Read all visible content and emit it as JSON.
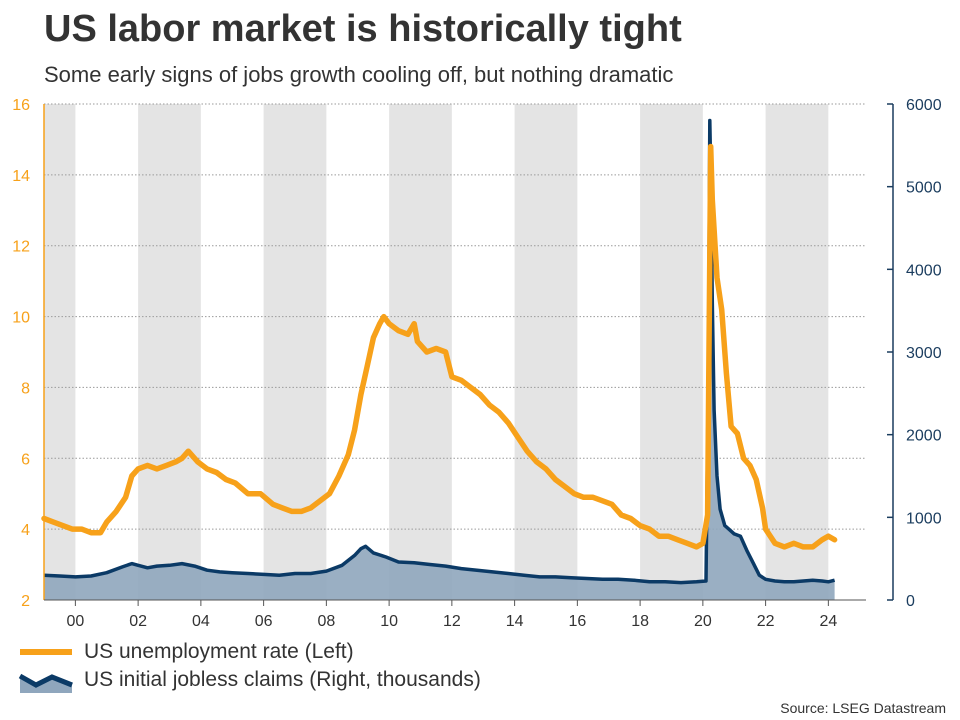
{
  "title": "US labor market is historically tight",
  "subtitle": "Some early signs of jobs growth cooling off, but nothing dramatic",
  "source": "Source: LSEG Datastream",
  "colors": {
    "unemployment": "#f7a11a",
    "claims_line": "#0b3a66",
    "claims_fill": "#8fa6bd",
    "band": "#e4e4e4",
    "left_axis": "#f7a11a",
    "right_axis": "#1a3c5e"
  },
  "legend": [
    {
      "label": "US unemployment rate (Left)",
      "icon": "orange-line-icon"
    },
    {
      "label": "US initial jobless claims (Right, thousands)",
      "icon": "blue-area-icon"
    }
  ],
  "chart_data": {
    "type": "line",
    "x_range": [
      1999.0,
      2025.2
    ],
    "x_ticks": [
      {
        "value": 2000,
        "label": "00"
      },
      {
        "value": 2002,
        "label": "02"
      },
      {
        "value": 2004,
        "label": "04"
      },
      {
        "value": 2006,
        "label": "06"
      },
      {
        "value": 2008,
        "label": "08"
      },
      {
        "value": 2010,
        "label": "10"
      },
      {
        "value": 2012,
        "label": "12"
      },
      {
        "value": 2014,
        "label": "14"
      },
      {
        "value": 2016,
        "label": "16"
      },
      {
        "value": 2018,
        "label": "18"
      },
      {
        "value": 2020,
        "label": "20"
      },
      {
        "value": 2022,
        "label": "22"
      },
      {
        "value": 2024,
        "label": "24"
      }
    ],
    "shaded_years": [
      [
        1999.0,
        2000.0
      ],
      [
        2002.0,
        2004.0
      ],
      [
        2006.0,
        2008.0
      ],
      [
        2010.0,
        2012.0
      ],
      [
        2014.0,
        2016.0
      ],
      [
        2018.0,
        2020.0
      ],
      [
        2022.0,
        2024.0
      ]
    ],
    "left_axis": {
      "min": 2,
      "max": 16,
      "ticks": [
        "2",
        "4",
        "6",
        "8",
        "10",
        "12",
        "14",
        "16"
      ]
    },
    "right_axis": {
      "min": 0,
      "max": 6000,
      "ticks": [
        "0",
        "1000",
        "2000",
        "3000",
        "4000",
        "5000",
        "6000"
      ]
    },
    "grid": true,
    "series": [
      {
        "name": "US unemployment rate (Left)",
        "axis": "left",
        "type": "line",
        "x": [
          1999.0,
          1999.3,
          1999.6,
          1999.9,
          2000.2,
          2000.5,
          2000.8,
          2001.0,
          2001.3,
          2001.6,
          2001.8,
          2002.0,
          2002.3,
          2002.6,
          2002.9,
          2003.2,
          2003.4,
          2003.6,
          2003.9,
          2004.2,
          2004.5,
          2004.8,
          2005.1,
          2005.5,
          2005.9,
          2006.3,
          2006.6,
          2006.9,
          2007.2,
          2007.5,
          2007.8,
          2008.1,
          2008.4,
          2008.7,
          2008.9,
          2009.1,
          2009.3,
          2009.5,
          2009.7,
          2009.83,
          2010.0,
          2010.3,
          2010.6,
          2010.8,
          2010.9,
          2011.2,
          2011.5,
          2011.8,
          2012.0,
          2012.3,
          2012.6,
          2012.9,
          2013.2,
          2013.5,
          2013.8,
          2014.1,
          2014.4,
          2014.7,
          2015.0,
          2015.3,
          2015.6,
          2015.9,
          2016.2,
          2016.5,
          2016.8,
          2017.1,
          2017.4,
          2017.7,
          2018.0,
          2018.3,
          2018.6,
          2018.9,
          2019.2,
          2019.5,
          2019.8,
          2020.0,
          2020.15,
          2020.25,
          2020.3,
          2020.45,
          2020.6,
          2020.75,
          2020.9,
          2021.1,
          2021.3,
          2021.5,
          2021.7,
          2021.9,
          2022.0,
          2022.3,
          2022.6,
          2022.9,
          2023.2,
          2023.5,
          2023.8,
          2024.0,
          2024.2
        ],
        "y": [
          4.3,
          4.2,
          4.1,
          4.0,
          4.0,
          3.9,
          3.9,
          4.2,
          4.5,
          4.9,
          5.5,
          5.7,
          5.8,
          5.7,
          5.8,
          5.9,
          6.0,
          6.2,
          5.9,
          5.7,
          5.6,
          5.4,
          5.3,
          5.0,
          5.0,
          4.7,
          4.6,
          4.5,
          4.5,
          4.6,
          4.8,
          5.0,
          5.5,
          6.1,
          6.8,
          7.8,
          8.6,
          9.4,
          9.8,
          10.0,
          9.8,
          9.6,
          9.5,
          9.8,
          9.3,
          9.0,
          9.1,
          9.0,
          8.3,
          8.2,
          8.0,
          7.8,
          7.5,
          7.3,
          7.0,
          6.6,
          6.2,
          5.9,
          5.7,
          5.4,
          5.2,
          5.0,
          4.9,
          4.9,
          4.8,
          4.7,
          4.4,
          4.3,
          4.1,
          4.0,
          3.8,
          3.8,
          3.7,
          3.6,
          3.5,
          3.6,
          4.4,
          14.8,
          13.3,
          11.1,
          10.2,
          8.4,
          6.9,
          6.7,
          6.0,
          5.8,
          5.4,
          4.6,
          4.0,
          3.6,
          3.5,
          3.6,
          3.5,
          3.5,
          3.7,
          3.8,
          3.7
        ]
      },
      {
        "name": "US initial jobless claims (Right, thousands)",
        "axis": "right",
        "type": "area",
        "x": [
          1999.0,
          1999.5,
          2000.0,
          2000.5,
          2001.0,
          2001.5,
          2001.8,
          2002.0,
          2002.3,
          2002.6,
          2003.0,
          2003.4,
          2003.8,
          2004.2,
          2004.6,
          2005.0,
          2005.5,
          2006.0,
          2006.5,
          2007.0,
          2007.5,
          2008.0,
          2008.5,
          2008.9,
          2009.1,
          2009.25,
          2009.5,
          2009.9,
          2010.3,
          2010.8,
          2011.3,
          2011.8,
          2012.3,
          2012.8,
          2013.3,
          2013.8,
          2014.3,
          2014.8,
          2015.3,
          2015.8,
          2016.3,
          2016.8,
          2017.3,
          2017.8,
          2018.3,
          2018.8,
          2019.3,
          2019.8,
          2020.1,
          2020.18,
          2020.22,
          2020.26,
          2020.3,
          2020.36,
          2020.45,
          2020.55,
          2020.7,
          2020.85,
          2021.0,
          2021.2,
          2021.4,
          2021.6,
          2021.8,
          2022.0,
          2022.3,
          2022.6,
          2022.9,
          2023.2,
          2023.5,
          2023.8,
          2024.0,
          2024.2
        ],
        "y": [
          300,
          290,
          280,
          290,
          330,
          400,
          440,
          420,
          390,
          410,
          420,
          440,
          410,
          360,
          340,
          330,
          320,
          310,
          300,
          320,
          320,
          350,
          420,
          540,
          620,
          650,
          570,
          520,
          460,
          450,
          430,
          410,
          380,
          360,
          340,
          320,
          300,
          280,
          280,
          270,
          260,
          250,
          250,
          240,
          220,
          220,
          210,
          220,
          230,
          2900,
          5800,
          5000,
          3600,
          2300,
          1500,
          1100,
          900,
          850,
          800,
          770,
          600,
          450,
          300,
          250,
          230,
          220,
          220,
          230,
          240,
          230,
          220,
          240
        ]
      }
    ]
  }
}
